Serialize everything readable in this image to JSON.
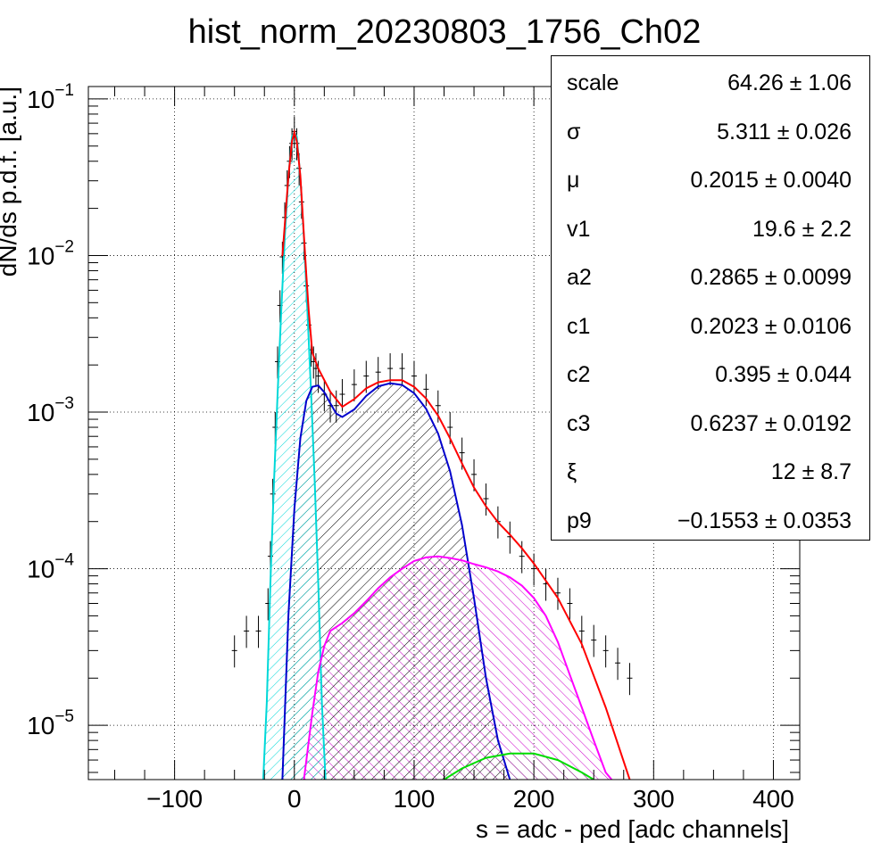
{
  "chart_data": {
    "type": "histogram",
    "title": "hist_norm_20230803_1756_Ch02",
    "xlabel": "s = adc - ped [adc channels]",
    "ylabel": "dN/ds p.d.f. [a.u.]",
    "xlim": [
      -172,
      422
    ],
    "ylim": [
      4.5e-06,
      0.12
    ],
    "y_scale": "log",
    "grid": true,
    "x_ticks": [
      -100,
      0,
      100,
      200,
      300,
      400
    ],
    "x_tick_labels": [
      "−100",
      "0",
      "100",
      "200",
      "300",
      "400"
    ],
    "y_ticks": [
      {
        "value": 1e-05,
        "mantissa": "10",
        "exp": "−5"
      },
      {
        "value": 0.0001,
        "mantissa": "10",
        "exp": "−4"
      },
      {
        "value": 0.001,
        "mantissa": "10",
        "exp": "−3"
      },
      {
        "value": 0.01,
        "mantissa": "10",
        "exp": "−2"
      },
      {
        "value": 0.1,
        "mantissa": "10",
        "exp": "−1"
      }
    ],
    "series": [
      {
        "key": "data",
        "color": "#000000",
        "style": "histogram-errorbars",
        "x": [
          -50,
          -40,
          -30,
          -22,
          -20,
          -18,
          -16,
          -14,
          -12,
          -10,
          -8,
          -6,
          -4,
          -2,
          0,
          2,
          4,
          6,
          8,
          10,
          12,
          14,
          16,
          18,
          20,
          25,
          30,
          35,
          40,
          50,
          60,
          70,
          80,
          90,
          100,
          110,
          120,
          130,
          140,
          150,
          160,
          170,
          180,
          190,
          200,
          210,
          220,
          230,
          240,
          250,
          260,
          270,
          280
        ],
        "y": [
          3e-05,
          4e-05,
          4e-05,
          6e-05,
          0.00012,
          0.0003,
          0.0008,
          0.0021,
          0.0048,
          0.0098,
          0.0175,
          0.028,
          0.04,
          0.052,
          0.062,
          0.052,
          0.036,
          0.022,
          0.012,
          0.0064,
          0.0036,
          0.0025,
          0.0021,
          0.0019,
          0.0017,
          0.0013,
          0.0011,
          0.0011,
          0.0013,
          0.0015,
          0.0017,
          0.0018,
          0.0019,
          0.0019,
          0.0017,
          0.0014,
          0.0011,
          0.0008,
          0.00055,
          0.0004,
          0.00028,
          0.0002,
          0.00016,
          0.00012,
          0.0001,
          8e-05,
          7e-05,
          6e-05,
          4e-05,
          3.5e-05,
          3e-05,
          2.5e-05,
          2e-05
        ]
      },
      {
        "key": "total-fit",
        "color": "#ff0000",
        "style": "line",
        "x": [
          -10,
          -5,
          -2,
          0,
          2,
          5,
          8,
          10,
          12,
          15,
          20,
          30,
          40,
          50,
          60,
          70,
          80,
          90,
          100,
          110,
          120,
          130,
          140,
          150,
          160,
          170,
          180,
          190,
          200,
          220,
          240,
          260,
          280
        ],
        "y": [
          0.0099,
          0.0318,
          0.0538,
          0.0612,
          0.0538,
          0.0323,
          0.0134,
          0.0075,
          0.0044,
          0.0024,
          0.0019,
          0.00135,
          0.00108,
          0.00121,
          0.00142,
          0.00155,
          0.0016,
          0.0016,
          0.00145,
          0.00122,
          0.00095,
          0.00068,
          0.00047,
          0.00033,
          0.00025,
          0.000198,
          0.000165,
          0.000135,
          0.000108,
          6.5e-05,
          3.3e-05,
          1.3e-05,
          4.5e-06
        ]
      },
      {
        "key": "pedestal",
        "color": "#00d8d8",
        "style": "hatched-fill",
        "x": [
          -26,
          -23,
          -20,
          -17,
          -14,
          -11,
          -8,
          -5,
          -2,
          0,
          2,
          5,
          8,
          11,
          14,
          17,
          20,
          23,
          26
        ],
        "y": [
          4.5e-06,
          1.4e-05,
          8e-05,
          0.00036,
          0.0013,
          0.0043,
          0.0129,
          0.0316,
          0.0575,
          0.0612,
          0.0575,
          0.0316,
          0.0129,
          0.0043,
          0.0013,
          0.00036,
          8e-05,
          1.4e-05,
          4.5e-06
        ]
      },
      {
        "key": "first-pe",
        "color": "#0000cc",
        "style": "hatched-fill",
        "x": [
          -10,
          -5,
          0,
          5,
          10,
          15,
          20,
          25,
          30,
          35,
          40,
          50,
          60,
          70,
          80,
          90,
          100,
          110,
          120,
          130,
          140,
          150,
          160,
          170,
          175,
          180
        ],
        "y": [
          4.5e-06,
          5e-05,
          0.00024,
          0.00068,
          0.00118,
          0.00145,
          0.00148,
          0.00134,
          0.00114,
          0.00098,
          0.00093,
          0.00104,
          0.00127,
          0.00146,
          0.00153,
          0.00149,
          0.00132,
          0.00105,
          0.00073,
          0.00042,
          0.00019,
          6.5e-05,
          2e-05,
          8e-06,
          6e-06,
          4.5e-06
        ]
      },
      {
        "key": "second-pe",
        "color": "#ff00ff",
        "style": "hatched-fill",
        "x": [
          8,
          15,
          20,
          25,
          30,
          40,
          50,
          60,
          70,
          80,
          90,
          100,
          110,
          120,
          130,
          140,
          150,
          160,
          170,
          180,
          190,
          200,
          210,
          220,
          230,
          240,
          250,
          260,
          265
        ],
        "y": [
          4.5e-06,
          1.2e-05,
          2.2e-05,
          3.2e-05,
          4e-05,
          4.5e-05,
          5.2e-05,
          6.2e-05,
          7.5e-05,
          8.8e-05,
          0.0001,
          0.000112,
          0.000118,
          0.00012,
          0.000117,
          0.000113,
          0.000107,
          0.000102,
          9.6e-05,
          8.8e-05,
          7.8e-05,
          6.5e-05,
          5e-05,
          3.4e-05,
          2.1e-05,
          1.3e-05,
          8e-06,
          5e-06,
          4.5e-06
        ]
      },
      {
        "key": "third-pe",
        "color": "#00dd00",
        "style": "hatched-fill",
        "x": [
          125,
          140,
          160,
          180,
          200,
          220,
          240,
          250
        ],
        "y": [
          4.5e-06,
          5.3e-06,
          6.2e-06,
          6.6e-06,
          6.6e-06,
          6e-06,
          5e-06,
          4.5e-06
        ]
      }
    ]
  },
  "stats": {
    "rows": [
      {
        "name": "scale",
        "value": "64.26 ± 1.06"
      },
      {
        "name": "σ",
        "value": "5.311 ± 0.026"
      },
      {
        "name": "μ",
        "value": "0.2015 ± 0.0040"
      },
      {
        "name": "v1",
        "value": "19.6 ± 2.2"
      },
      {
        "name": "a2",
        "value": "0.2865 ± 0.0099"
      },
      {
        "name": "c1",
        "value": "0.2023 ± 0.0106"
      },
      {
        "name": "c2",
        "value": "0.395 ± 0.044"
      },
      {
        "name": "c3",
        "value": "0.6237 ± 0.0192"
      },
      {
        "name": "ξ",
        "value": "12 ± 8.7"
      },
      {
        "name": "p9",
        "value": "−0.1553 ± 0.0353"
      }
    ]
  }
}
